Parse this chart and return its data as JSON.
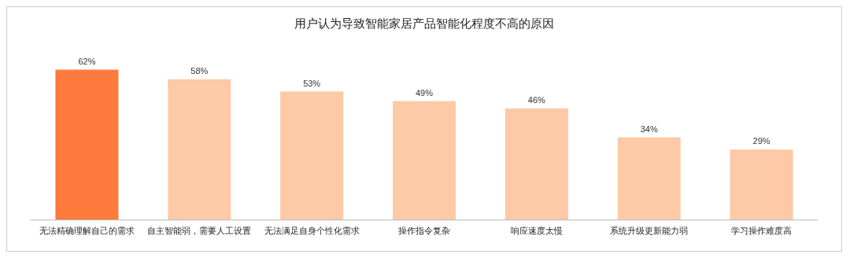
{
  "chart_data": {
    "type": "bar",
    "title": "用户认为导致智能家居产品智能化程度不高的原因",
    "categories": [
      "无法精确理解自己的需求",
      "自主智能弱，需要人工设置",
      "无法满足自身个性化需求",
      "操作指令复杂",
      "响应速度太慢",
      "系统升级更新能力弱",
      "学习操作难度高"
    ],
    "values": [
      62,
      58,
      53,
      49,
      46,
      34,
      29
    ],
    "value_labels": [
      "62%",
      "58%",
      "53%",
      "49%",
      "46%",
      "34%",
      "29%"
    ],
    "colors": [
      "#ff7a3d",
      "#fdc9a6",
      "#fdc9a6",
      "#fdc9a6",
      "#fdc9a6",
      "#fdc9a6",
      "#fdc9a6"
    ]
  }
}
